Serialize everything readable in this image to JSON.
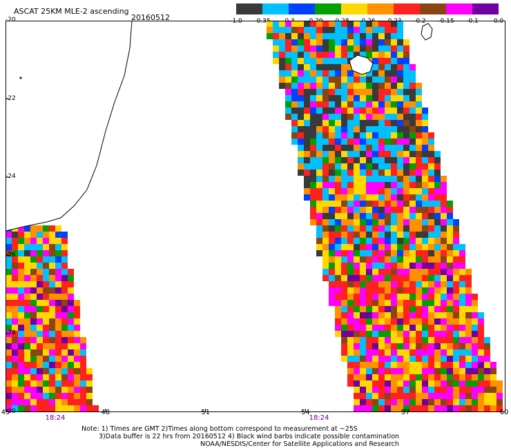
{
  "header": {
    "title": "ASCAT 25KM MLE-2 ascending",
    "date": "20160512"
  },
  "colorbar": {
    "colors": [
      "#3a3a3a",
      "#00c0ff",
      "#0040ff",
      "#00a000",
      "#ffd800",
      "#ff9000",
      "#ff2020",
      "#8b4513",
      "#ff00ff",
      "#7000a0"
    ],
    "tick_labels": [
      "-1.0",
      "-0.35",
      "-0.3",
      "-0.29",
      "-0.28",
      "-0.26",
      "-0.23",
      "-0.2",
      "-0.15",
      "-0.1",
      "0.0"
    ]
  },
  "map": {
    "lon_range": [
      45,
      60
    ],
    "lat_range": [
      -20,
      -30
    ],
    "lon_labels": [
      "45",
      "48",
      "51",
      "54",
      "57",
      "60"
    ],
    "lat_labels": [
      "-20",
      "-22",
      "-24",
      "-26",
      "-28",
      "-30"
    ],
    "pass_times": [
      "18:24",
      "18:24"
    ],
    "coastline_color": "#000000"
  },
  "notes": {
    "line1": "Note: 1) Times are GMT 2)Times along bottom correspond to measurement at ~25S",
    "line2": "3)Data buffer is 22 hrs from 20160512 4) Black wind barbs indicate possible contamination",
    "line3": "NOAA/NESDIS/Center for Satellite Applications and Research"
  }
}
